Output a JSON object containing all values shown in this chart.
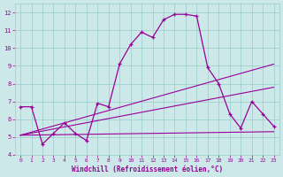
{
  "xlabel": "Windchill (Refroidissement éolien,°C)",
  "bg_color": "#cce8e8",
  "grid_color": "#99cccc",
  "line_color": "#990099",
  "xlim": [
    -0.5,
    23.5
  ],
  "ylim": [
    4.0,
    12.5
  ],
  "yticks": [
    4,
    5,
    6,
    7,
    8,
    9,
    10,
    11,
    12
  ],
  "xticks": [
    0,
    1,
    2,
    3,
    4,
    5,
    6,
    7,
    8,
    9,
    10,
    11,
    12,
    13,
    14,
    15,
    16,
    17,
    18,
    19,
    20,
    21,
    22,
    23
  ],
  "line1_x": [
    0,
    1,
    2,
    3,
    4,
    5,
    6,
    7,
    8,
    9,
    10,
    11,
    12,
    13,
    14,
    15,
    16,
    17,
    18,
    19,
    20,
    21,
    22,
    23
  ],
  "line1_y": [
    6.7,
    6.7,
    4.6,
    5.2,
    5.8,
    5.2,
    4.8,
    6.9,
    6.7,
    9.1,
    10.2,
    10.9,
    10.6,
    11.6,
    11.9,
    11.9,
    11.8,
    8.9,
    8.0,
    6.3,
    5.5,
    7.0,
    6.3,
    5.6
  ],
  "line2_x": [
    0,
    23
  ],
  "line2_y": [
    5.1,
    5.3
  ],
  "line3_x": [
    0,
    23
  ],
  "line3_y": [
    5.1,
    7.8
  ],
  "line4_x": [
    0,
    23
  ],
  "line4_y": [
    5.1,
    9.1
  ]
}
